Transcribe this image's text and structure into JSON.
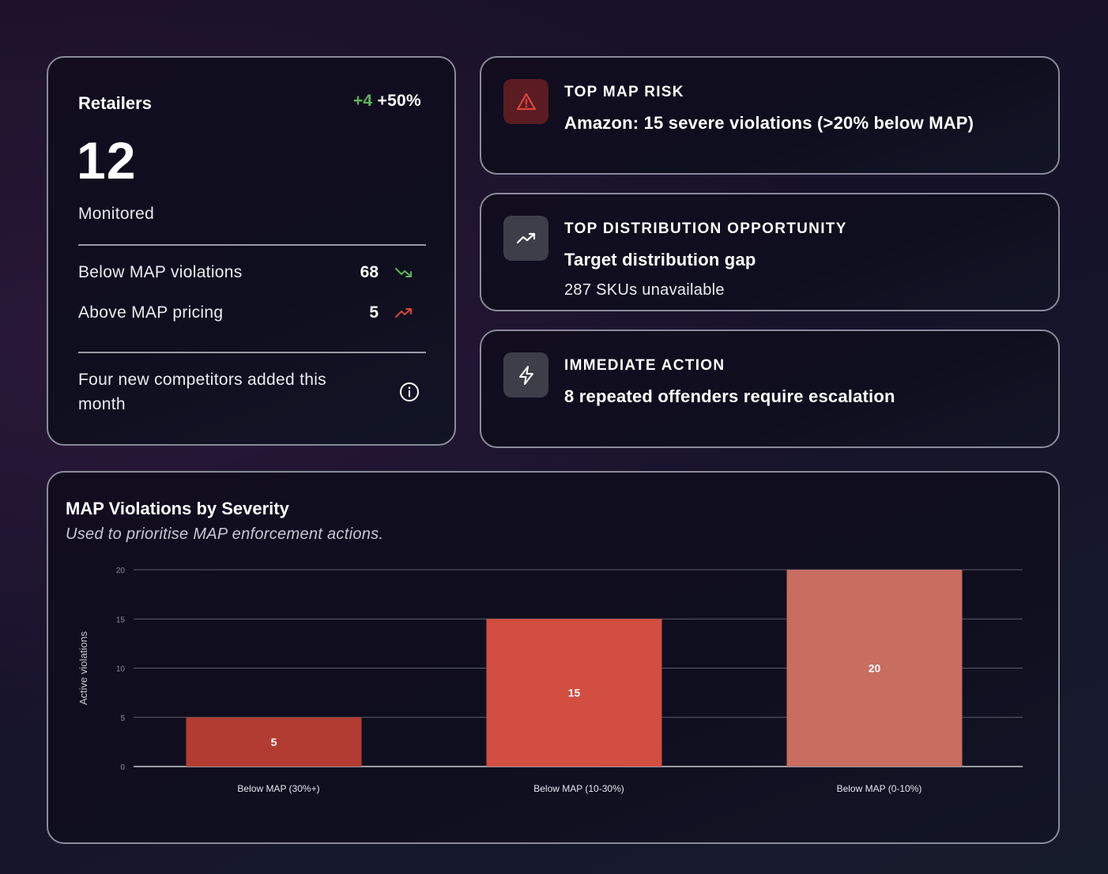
{
  "retailers": {
    "title": "Retailers",
    "delta_count": "+4",
    "delta_percent": "+50%",
    "count": "12",
    "count_label": "Monitored",
    "metrics": [
      {
        "label": "Below MAP violations",
        "value": "68",
        "trend": "down",
        "trend_color": "#5fb35c"
      },
      {
        "label": "Above MAP pricing",
        "value": "5",
        "trend": "up",
        "trend_color": "#d9443a"
      }
    ],
    "note": "Four new competitors added this month"
  },
  "insights": [
    {
      "label": "TOP MAP RISK",
      "headline": "Amazon: 15 severe violations (>20% below MAP)",
      "detail": "",
      "icon": "warning-icon",
      "accent": "#e0453b"
    },
    {
      "label": "TOP DISTRIBUTION OPPORTUNITY",
      "headline": "Target distribution gap",
      "detail": "287 SKUs unavailable",
      "icon": "trending-up-icon"
    },
    {
      "label": "IMMEDIATE ACTION",
      "headline": "8 repeated offenders require escalation",
      "detail": "",
      "icon": "lightning-icon"
    }
  ],
  "chart_card": {
    "title": "MAP Violations by Severity",
    "subtitle": "Used to prioritise MAP enforcement actions."
  },
  "chart_data": {
    "type": "bar",
    "title": "MAP Violations by Severity",
    "subtitle": "Used to prioritise MAP enforcement actions.",
    "categories": [
      "Below MAP (30%+)",
      "Below MAP (10-30%)",
      "Below MAP (0-10%)"
    ],
    "values": [
      5,
      15,
      20
    ],
    "data_labels": [
      "5",
      "15",
      "20"
    ],
    "colors": [
      "#b23c31",
      "#d14e40",
      "#c96d61"
    ],
    "xlabel": "",
    "ylabel": "Active violations",
    "ylim": [
      0,
      20
    ],
    "yticks": [
      0,
      5,
      10,
      15,
      20
    ],
    "ytick_labels": [
      "0",
      "5",
      "10",
      "15",
      "20"
    ],
    "grid": true,
    "legend": "none"
  }
}
